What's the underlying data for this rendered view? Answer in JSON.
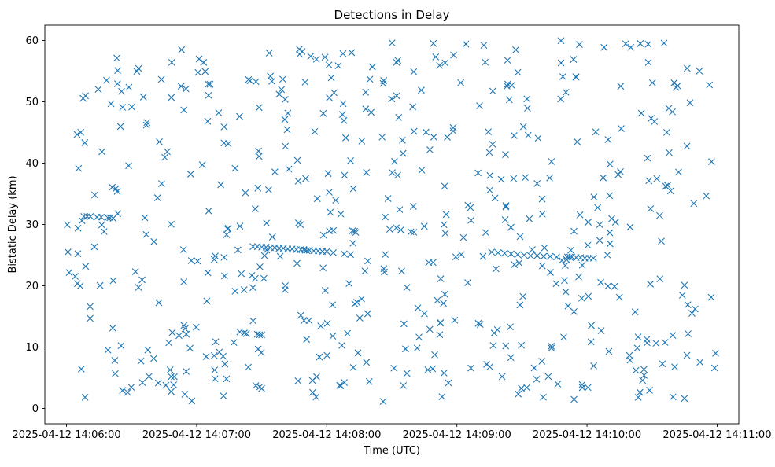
{
  "chart_data": {
    "type": "scatter",
    "title": "Detections in Delay",
    "xlabel": "Time (UTC)",
    "ylabel": "Bistatic Delay (km)",
    "marker": "x",
    "color": "#1f77b4",
    "grid": false,
    "legend": "none",
    "x_unit": "seconds after 2025-04-12 14:06:00 UTC",
    "xlim": [
      -10,
      310
    ],
    "ylim": [
      -2.5,
      62.5
    ],
    "x_ticks": [
      0,
      60,
      120,
      180,
      240,
      300
    ],
    "x_tick_labels": [
      "2025-04-12 14:06:00",
      "2025-04-12 14:07:00",
      "2025-04-12 14:08:00",
      "2025-04-12 14:09:00",
      "2025-04-12 14:10:00",
      "2025-04-12 14:11:00"
    ],
    "y_ticks": [
      0,
      10,
      20,
      30,
      40,
      50,
      60
    ],
    "y_tick_labels": [
      "0",
      "10",
      "20",
      "30",
      "40",
      "50",
      "60"
    ],
    "clusters": [
      {
        "x": [
          8.0,
          9.5,
          11.0,
          14.0,
          16.0,
          19.0,
          20.0,
          21.5
        ],
        "y": [
          31.3,
          31.3,
          31.3,
          31.2,
          31.2,
          31.1,
          31.1,
          31.0
        ]
      },
      {
        "x": [
          86.0,
          88.0,
          90.0,
          92.0,
          94.0,
          96.0,
          98.0,
          100.0,
          102.0,
          104.0,
          106.0,
          108.0,
          110.0,
          112.0,
          114.0,
          116.0,
          118.0,
          120.0
        ],
        "y": [
          26.4,
          26.4,
          26.3,
          26.3,
          26.2,
          26.2,
          26.1,
          26.1,
          26.0,
          26.0,
          25.9,
          25.9,
          25.8,
          25.8,
          25.7,
          25.7,
          25.6,
          25.6
        ]
      },
      {
        "x": [
          196.0,
          199.0,
          202.0,
          205.0,
          208.0,
          211.0,
          214.0,
          217.0,
          220.0,
          223.0,
          226.0
        ],
        "y": [
          25.5,
          25.4,
          25.3,
          25.2,
          25.1,
          25.0,
          24.9,
          24.9,
          24.8,
          24.8,
          24.7
        ]
      },
      {
        "x": [
          231.0,
          233.0,
          235.0,
          237.0,
          239.0,
          241.0,
          243.0
        ],
        "y": [
          24.7,
          24.7,
          24.6,
          24.6,
          24.5,
          24.5,
          24.5
        ]
      },
      {
        "x": [
          87.0,
          91.0,
          123.0,
          128.0,
          131.0,
          167.0,
          169.0
        ],
        "y": [
          21.2,
          21.2,
          25.4,
          25.2,
          25.1,
          23.8,
          23.8
        ]
      },
      {
        "x": [
          82.0,
          83.0,
          88.0,
          89.0,
          90.0
        ],
        "y": [
          12.3,
          12.2,
          12.1,
          12.0,
          12.0
        ]
      }
    ],
    "scatter_seed": 20250412,
    "scatter_count": 560
  }
}
